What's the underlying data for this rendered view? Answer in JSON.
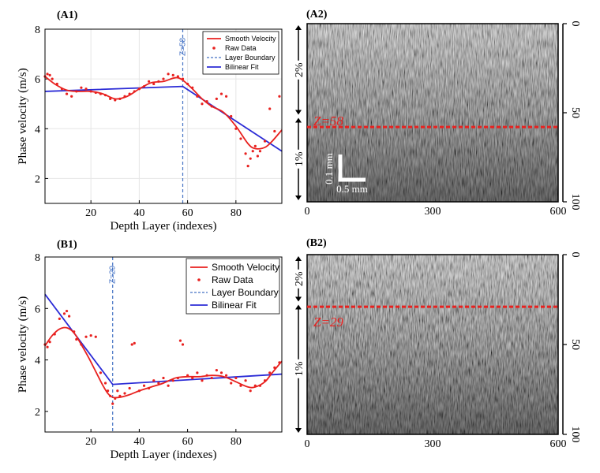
{
  "panels": {
    "a1": {
      "label": "(A1)"
    },
    "a2": {
      "label": "(A2)"
    },
    "b1": {
      "label": "(B1)"
    },
    "b2": {
      "label": "(B2)"
    }
  },
  "chart_data": [
    {
      "id": "A1",
      "type": "line",
      "title": "",
      "xlabel": "Depth Layer (indexes)",
      "ylabel": "Phase velocity (m/s)",
      "xlim": [
        1,
        99
      ],
      "ylim": [
        1,
        8
      ],
      "xticks": [
        20,
        40,
        60,
        80
      ],
      "yticks": [
        2,
        4,
        6,
        8
      ],
      "grid": true,
      "legend_position": "top-right",
      "boundary": {
        "x": 58,
        "label": "Z=58"
      },
      "series": [
        {
          "name": "Smooth Velocity",
          "kind": "line",
          "color": "#e8211f",
          "x": [
            1,
            5,
            10,
            15,
            20,
            25,
            30,
            35,
            40,
            45,
            50,
            55,
            58,
            62,
            66,
            70,
            75,
            80,
            85,
            88,
            92,
            95,
            99
          ],
          "y": [
            6.1,
            5.8,
            5.55,
            5.5,
            5.5,
            5.4,
            5.2,
            5.3,
            5.6,
            5.85,
            5.9,
            6.05,
            5.95,
            5.6,
            5.2,
            4.9,
            4.65,
            4.1,
            3.4,
            3.2,
            3.25,
            3.5,
            3.95
          ]
        },
        {
          "name": "Raw Data",
          "kind": "scatter",
          "color": "#e8211f",
          "x": [
            1,
            2,
            3,
            4,
            6,
            8,
            10,
            12,
            14,
            16,
            18,
            20,
            22,
            24,
            26,
            28,
            30,
            32,
            34,
            36,
            38,
            40,
            42,
            44,
            46,
            48,
            50,
            52,
            54,
            56,
            58,
            60,
            62,
            64,
            66,
            68,
            70,
            72,
            74,
            76,
            78,
            80,
            82,
            84,
            85,
            86,
            87,
            88,
            89,
            90,
            92,
            94,
            96,
            98
          ],
          "y": [
            6.1,
            6.2,
            6.15,
            6.0,
            5.8,
            5.6,
            5.4,
            5.3,
            5.5,
            5.65,
            5.6,
            5.5,
            5.45,
            5.4,
            5.35,
            5.2,
            5.15,
            5.2,
            5.3,
            5.4,
            5.5,
            5.6,
            5.7,
            5.9,
            5.8,
            5.9,
            6.0,
            6.2,
            6.15,
            6.1,
            6.0,
            5.8,
            5.65,
            5.3,
            5.0,
            5.1,
            4.9,
            5.2,
            5.4,
            5.3,
            4.5,
            4.0,
            3.6,
            3.0,
            2.5,
            2.8,
            3.1,
            3.3,
            2.9,
            3.1,
            3.5,
            4.8,
            3.9,
            5.3
          ]
        },
        {
          "name": "Layer Boundary",
          "kind": "vline",
          "color": "#4472c4",
          "x": 58
        },
        {
          "name": "Bilinear Fit",
          "kind": "line",
          "color": "#2b2bd6",
          "x": [
            1,
            58,
            99
          ],
          "y": [
            5.5,
            5.7,
            3.1
          ]
        }
      ]
    },
    {
      "id": "B1",
      "type": "line",
      "title": "",
      "xlabel": "Depth Layer (indexes)",
      "ylabel": "Phase velocity (m/s)",
      "xlim": [
        1,
        99
      ],
      "ylim": [
        1.2,
        8
      ],
      "xticks": [
        20,
        40,
        60,
        80
      ],
      "yticks": [
        2,
        4,
        6,
        8
      ],
      "grid": false,
      "legend_position": "top-right",
      "boundary": {
        "x": 29,
        "label": "Z=29"
      },
      "series": [
        {
          "name": "Smooth Velocity",
          "kind": "line",
          "color": "#e8211f",
          "x": [
            1,
            4,
            7,
            10,
            13,
            16,
            19,
            22,
            25,
            27,
            29,
            32,
            36,
            40,
            45,
            50,
            55,
            60,
            65,
            70,
            75,
            80,
            85,
            88,
            92,
            95,
            99
          ],
          "y": [
            4.55,
            4.95,
            5.2,
            5.25,
            5.05,
            4.6,
            4.1,
            3.55,
            3.0,
            2.7,
            2.55,
            2.55,
            2.65,
            2.8,
            2.95,
            3.1,
            3.3,
            3.35,
            3.35,
            3.4,
            3.35,
            3.15,
            2.95,
            2.95,
            3.15,
            3.5,
            3.95
          ]
        },
        {
          "name": "Raw Data",
          "kind": "scatter",
          "color": "#e8211f",
          "x": [
            1,
            2,
            3,
            5,
            7,
            9,
            10,
            11,
            13,
            14,
            16,
            18,
            20,
            22,
            24,
            26,
            27,
            28,
            29,
            30,
            31,
            32,
            34,
            36,
            37,
            38,
            40,
            42,
            44,
            46,
            48,
            50,
            52,
            54,
            56,
            57,
            58,
            60,
            62,
            64,
            66,
            68,
            70,
            72,
            74,
            76,
            78,
            80,
            82,
            84,
            86,
            88,
            90,
            92,
            94,
            96,
            98
          ],
          "y": [
            4.6,
            4.5,
            4.7,
            5.0,
            5.6,
            5.8,
            5.9,
            5.7,
            5.1,
            4.8,
            4.6,
            4.9,
            4.95,
            4.9,
            3.5,
            3.1,
            2.8,
            2.6,
            2.3,
            2.5,
            2.8,
            2.6,
            2.7,
            2.9,
            4.6,
            4.65,
            2.8,
            3.0,
            2.9,
            3.2,
            3.1,
            3.3,
            3.0,
            3.2,
            3.3,
            4.75,
            4.6,
            3.4,
            3.3,
            3.5,
            3.2,
            3.4,
            3.3,
            3.6,
            3.5,
            3.4,
            3.1,
            3.3,
            3.0,
            3.2,
            2.8,
            3.0,
            3.0,
            3.2,
            3.5,
            3.7,
            3.9
          ]
        },
        {
          "name": "Layer Boundary",
          "kind": "vline",
          "color": "#4472c4",
          "x": 29
        },
        {
          "name": "Bilinear Fit",
          "kind": "line",
          "color": "#2b2bd6",
          "x": [
            1,
            29,
            99
          ],
          "y": [
            6.55,
            3.05,
            3.45
          ]
        }
      ]
    },
    {
      "id": "A2",
      "type": "heatmap",
      "title": "",
      "xticks": [
        0,
        300,
        600
      ],
      "yticks_right": [
        0,
        50,
        100
      ],
      "xlim": [
        0,
        600
      ],
      "ylim": [
        0,
        100
      ],
      "boundary": {
        "y": 58,
        "label": "Z=58"
      },
      "side_labels": [
        {
          "text": "2%",
          "from": 0,
          "to": 52
        },
        {
          "text": "1%",
          "from": 52,
          "to": 100
        }
      ],
      "scale_bar": {
        "vertical": "0.1 mm",
        "horizontal": "0.5 mm"
      }
    },
    {
      "id": "B2",
      "type": "heatmap",
      "title": "",
      "xticks": [
        0,
        300,
        600
      ],
      "yticks_right": [
        0,
        50,
        100
      ],
      "xlim": [
        0,
        600
      ],
      "ylim": [
        0,
        100
      ],
      "boundary": {
        "y": 29,
        "label": "Z=29"
      },
      "side_labels": [
        {
          "text": "2%",
          "from": 0,
          "to": 27
        },
        {
          "text": "1%",
          "from": 27,
          "to": 100
        }
      ]
    }
  ]
}
